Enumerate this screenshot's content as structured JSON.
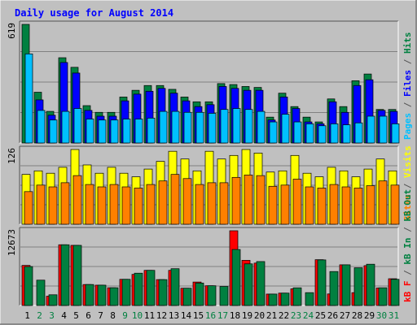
{
  "title": "Daily usage for August 2014",
  "colors": {
    "background": "#c0c0c0",
    "border_dark": "#555555",
    "border_light": "#ffffff",
    "title": "#0000ff",
    "hits": "#008040",
    "files": "#0000ff",
    "pages": "#00c0ff",
    "visits": "#ffff00",
    "sites": "#ff8000",
    "kb_in": "#008040",
    "kb_out": "#ff0000",
    "weekend_label": "#008040",
    "weekday_label": "#000000",
    "gridline": "#808080"
  },
  "y_max_labels": {
    "hits": "619",
    "visits": "126",
    "kbytes": "12673"
  },
  "legends": {
    "top": [
      {
        "text": "Pages",
        "color_key": "pages"
      },
      {
        "text": " / ",
        "color_key": "border_dark"
      },
      {
        "text": "Files",
        "color_key": "files"
      },
      {
        "text": " / ",
        "color_key": "border_dark"
      },
      {
        "text": "Hits",
        "color_key": "hits"
      }
    ],
    "middle": [
      {
        "text": "Sites",
        "color_key": "sites"
      },
      {
        "text": " / ",
        "color_key": "border_dark"
      },
      {
        "text": "Visits",
        "color_key": "visits"
      }
    ],
    "bottom": [
      {
        "text": "kB F",
        "color_key": "kb_out"
      },
      {
        "text": " / ",
        "color_key": "border_dark"
      },
      {
        "text": "kB In",
        "color_key": "kb_in"
      },
      {
        "text": " / ",
        "color_key": "border_dark"
      },
      {
        "text": "kB Out",
        "color_key": "kb_in"
      }
    ]
  },
  "chart_data": {
    "type": "bar",
    "title": "Daily usage for August 2014",
    "categories": [
      "1",
      "2",
      "3",
      "4",
      "5",
      "6",
      "7",
      "8",
      "9",
      "10",
      "11",
      "12",
      "13",
      "14",
      "15",
      "16",
      "17",
      "18",
      "19",
      "20",
      "21",
      "22",
      "23",
      "24",
      "25",
      "26",
      "27",
      "28",
      "29",
      "30",
      "31"
    ],
    "weekend_days": [
      "2",
      "3",
      "9",
      "10",
      "16",
      "17",
      "23",
      "24",
      "30",
      "31"
    ],
    "panels": [
      {
        "name": "hits-files-pages",
        "ymax": 619,
        "series": [
          {
            "name": "Hits",
            "color_key": "hits",
            "values": [
              619,
              265,
              165,
              445,
              395,
              195,
              160,
              160,
              240,
              275,
              300,
              300,
              280,
              240,
              215,
              215,
              310,
              305,
              295,
              290,
              135,
              260,
              190,
              135,
              110,
              230,
              190,
              325,
              360,
              175,
              175
            ]
          },
          {
            "name": "Files",
            "color_key": "files",
            "values": [
              0,
              225,
              145,
              420,
              365,
              170,
              140,
              140,
              220,
              255,
              270,
              285,
              260,
              220,
              190,
              200,
              295,
              285,
              275,
              275,
              120,
              240,
              180,
              110,
              100,
              215,
              160,
              300,
              330,
              170,
              165
            ]
          },
          {
            "name": "Pages",
            "color_key": "pages",
            "values": [
              465,
              170,
              120,
              165,
              180,
              125,
              120,
              120,
              125,
              125,
              130,
              165,
              165,
              160,
              160,
              155,
              175,
              180,
              175,
              165,
              110,
              150,
              110,
              100,
              90,
              100,
              95,
              105,
              140,
              140,
              100
            ]
          }
        ]
      },
      {
        "name": "visits-sites",
        "ymax": 126,
        "series": [
          {
            "name": "Visits",
            "color_key": "visits",
            "values": [
              84,
              90,
              86,
              96,
              126,
              100,
              86,
              96,
              86,
              80,
              93,
              106,
              123,
              110,
              90,
              123,
              110,
              116,
              126,
              120,
              88,
              90,
              116,
              86,
              80,
              96,
              90,
              80,
              93,
              110,
              90
            ]
          },
          {
            "name": "Sites",
            "color_key": "sites",
            "values": [
              55,
              66,
              63,
              70,
              82,
              67,
              63,
              67,
              63,
              61,
              67,
              73,
              84,
              77,
              67,
              70,
              70,
              79,
              83,
              82,
              64,
              66,
              76,
              63,
              61,
              67,
              63,
              61,
              65,
              73,
              66
            ]
          }
        ]
      },
      {
        "name": "kbytes",
        "ymax": 12673,
        "series": [
          {
            "name": "kB F",
            "color_key": "kb_out",
            "values": [
              6800,
              0,
              1580,
              10300,
              10200,
              3560,
              3450,
              3010,
              4440,
              5280,
              5960,
              4390,
              5960,
              2930,
              3980,
              3350,
              0,
              12673,
              7660,
              7190,
              1940,
              2100,
              2830,
              0,
              7770,
              1960,
              6900,
              2180,
              6760,
              2970,
              4540
            ]
          },
          {
            "name": "kB In",
            "color_key": "kb_in",
            "values": [
              6600,
              4300,
              1820,
              10300,
              10200,
              3560,
              3450,
              3010,
              4440,
              5480,
              5960,
              4390,
              6240,
              2930,
              3810,
              3350,
              3230,
              9500,
              7060,
              7450,
              1940,
              2100,
              3000,
              2180,
              7730,
              5760,
              6900,
              6400,
              7000,
              3010,
              4440
            ]
          }
        ]
      }
    ]
  }
}
